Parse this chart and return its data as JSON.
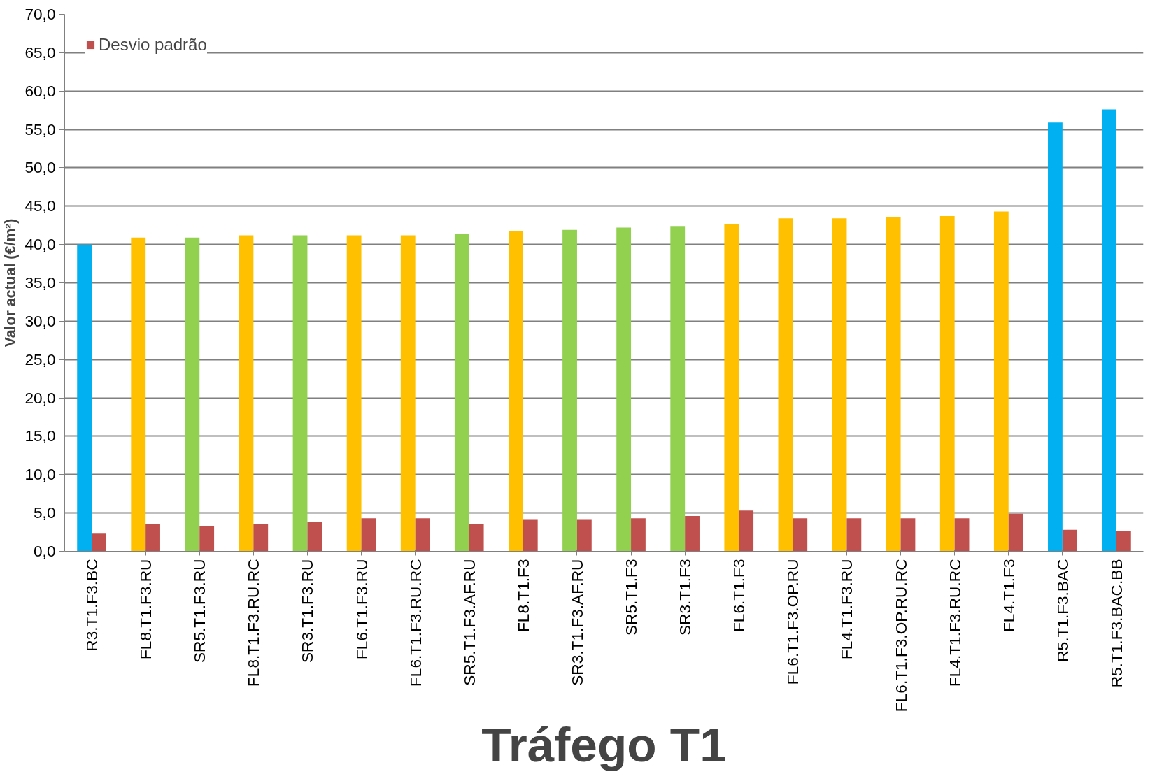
{
  "chart_data": {
    "type": "bar",
    "xlabel": "Tráfego T1",
    "ylabel": "Valor actual (€/m²)",
    "categories": [
      "R3.T1.F3.BC",
      "FL8.T1.F3.RU",
      "SR5.T1.F3.RU",
      "FL8.T1.F3.RU.RC",
      "SR3.T1.F3.RU",
      "FL6.T1.F3.RU",
      "FL6.T1.F3.RU.RC",
      "SR5.T1.F3.AF.RU",
      "FL8.T1.F3",
      "SR3.T1.F3.AF.RU",
      "SR5.T1.F3",
      "SR3.T1.F3",
      "FL6.T1.F3",
      "FL6.T1.F3.OP.RU",
      "FL4.T1.F3.RU",
      "FL6.T1.F3.OP.RU.RC",
      "FL4.T1.F3.RU.RC",
      "FL4.T1.F3",
      "R5.T1.F3.BAC",
      "R5.T1.F3.BAC.BB"
    ],
    "series": [
      {
        "colors": [
          "#00b0f0",
          "#ffc000",
          "#92d050",
          "#ffc000",
          "#92d050",
          "#ffc000",
          "#ffc000",
          "#92d050",
          "#ffc000",
          "#92d050",
          "#92d050",
          "#92d050",
          "#ffc000",
          "#ffc000",
          "#ffc000",
          "#ffc000",
          "#ffc000",
          "#ffc000",
          "#00b0f0",
          "#00b0f0"
        ],
        "values": [
          40.0,
          40.9,
          40.9,
          41.2,
          41.2,
          41.2,
          41.2,
          41.4,
          41.7,
          41.9,
          42.2,
          42.4,
          42.7,
          43.4,
          43.4,
          43.6,
          43.7,
          44.3,
          55.9,
          57.6
        ]
      },
      {
        "name": "Desvio padrão",
        "color": "#c0504d",
        "values": [
          2.3,
          3.6,
          3.3,
          3.6,
          3.8,
          4.3,
          4.3,
          3.6,
          4.1,
          4.1,
          4.3,
          4.6,
          5.3,
          4.3,
          4.3,
          4.3,
          4.3,
          4.9,
          2.8,
          2.6
        ]
      }
    ],
    "ylim": [
      0,
      70
    ],
    "yticks": [
      {
        "value": 0,
        "label": "0,0"
      },
      {
        "value": 5,
        "label": "5,0"
      },
      {
        "value": 10,
        "label": "10,0"
      },
      {
        "value": 15,
        "label": "15,0"
      },
      {
        "value": 20,
        "label": "20,0"
      },
      {
        "value": 25,
        "label": "25,0"
      },
      {
        "value": 30,
        "label": "30,0"
      },
      {
        "value": 35,
        "label": "35,0"
      },
      {
        "value": 40,
        "label": "40,0"
      },
      {
        "value": 45,
        "label": "45,0"
      },
      {
        "value": 50,
        "label": "50,0"
      },
      {
        "value": 55,
        "label": "55,0"
      },
      {
        "value": 60,
        "label": "60,0"
      },
      {
        "value": 65,
        "label": "65,0"
      },
      {
        "value": 70,
        "label": "70,0"
      }
    ],
    "grid": "y",
    "legend": "top left"
  }
}
